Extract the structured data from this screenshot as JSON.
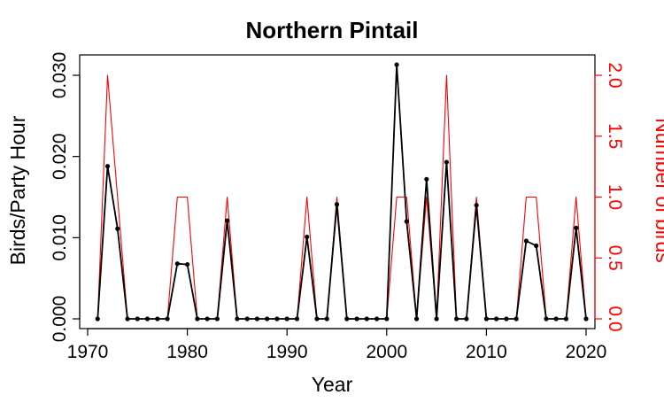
{
  "chart_data": {
    "type": "line",
    "title": "Northern Pintail",
    "xlabel": "Year",
    "ylabel_left": "Birds/Party Hour",
    "ylabel_right": "Number of birds",
    "xlim": [
      1970,
      2020
    ],
    "ylim_left": [
      0,
      0.03
    ],
    "ylim_right": [
      0,
      2.0
    ],
    "x_ticks": [
      1970,
      1980,
      1990,
      2000,
      2010,
      2020
    ],
    "y_left_ticks": [
      "0.000",
      "0.010",
      "0.020",
      "0.030"
    ],
    "y_right_ticks": [
      "0.0",
      "0.5",
      "1.0",
      "1.5",
      "2.0"
    ],
    "x": [
      1971,
      1972,
      1973,
      1974,
      1975,
      1976,
      1977,
      1978,
      1979,
      1980,
      1981,
      1982,
      1983,
      1984,
      1985,
      1986,
      1987,
      1988,
      1989,
      1990,
      1991,
      1992,
      1993,
      1994,
      1995,
      1996,
      1997,
      1998,
      1999,
      2000,
      2001,
      2002,
      2003,
      2004,
      2005,
      2006,
      2007,
      2008,
      2009,
      2010,
      2011,
      2012,
      2013,
      2014,
      2015,
      2016,
      2017,
      2018,
      2019,
      2020
    ],
    "series": [
      {
        "axis": "left",
        "color": "#000000",
        "values": [
          0,
          0.0188,
          0.0111,
          0,
          0,
          0,
          0,
          0,
          0.0068,
          0.0067,
          0,
          0,
          0,
          0.0121,
          0,
          0,
          0,
          0,
          0,
          0,
          0,
          0.0101,
          0,
          0,
          0.0141,
          0,
          0,
          0,
          0,
          0,
          0.0313,
          0.012,
          0,
          0.0172,
          0,
          0.0193,
          0,
          0,
          0.014,
          0,
          0,
          0,
          0,
          0.0096,
          0.009,
          0,
          0,
          0,
          0.0112,
          0
        ]
      },
      {
        "axis": "right",
        "color": "#ff0000",
        "values": [
          0,
          2,
          1,
          0,
          0,
          0,
          0,
          0,
          1,
          1,
          0,
          0,
          0,
          1,
          0,
          0,
          0,
          0,
          0,
          0,
          0,
          1,
          0,
          0,
          1,
          0,
          0,
          0,
          0,
          0,
          1,
          1,
          0,
          1,
          0,
          2,
          0,
          0,
          1,
          0,
          0,
          0,
          0,
          1,
          1,
          0,
          0,
          0,
          1,
          0
        ]
      }
    ],
    "grid": false
  }
}
